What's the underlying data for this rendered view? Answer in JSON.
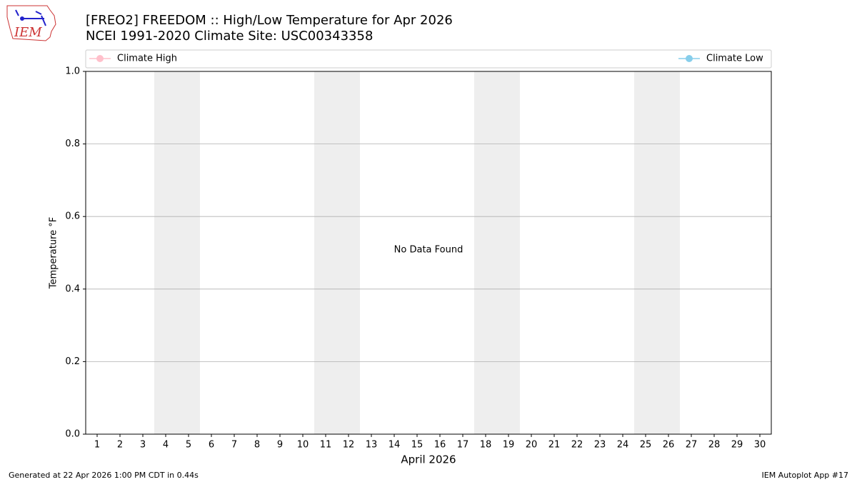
{
  "chart_data": {
    "type": "line",
    "title": "[FREO2] FREEDOM :: High/Low Temperature for Apr 2026",
    "subtitle": "NCEI 1991-2020 Climate Site: USC00343358",
    "logo_text": "IEM",
    "x_label": "April 2026",
    "y_label": "Temperature °F",
    "annotation": "No Data Found",
    "footer_left": "Generated at 22 Apr 2026 1:00 PM CDT in 0.44s",
    "footer_right": "IEM Autoplot App #17",
    "x": [
      1,
      2,
      3,
      4,
      5,
      6,
      7,
      8,
      9,
      10,
      11,
      12,
      13,
      14,
      15,
      16,
      17,
      18,
      19,
      20,
      21,
      22,
      23,
      24,
      25,
      26,
      27,
      28,
      29,
      30
    ],
    "xlim": [
      0.5,
      30.5
    ],
    "xticks": [
      1,
      2,
      3,
      4,
      5,
      6,
      7,
      8,
      9,
      10,
      11,
      12,
      13,
      14,
      15,
      16,
      17,
      18,
      19,
      20,
      21,
      22,
      23,
      24,
      25,
      26,
      27,
      28,
      29,
      30
    ],
    "ylim": [
      0,
      1
    ],
    "yticks": [
      {
        "value": 0,
        "label": "0.0"
      },
      {
        "value": 0.2,
        "label": "0.2"
      },
      {
        "value": 0.4,
        "label": "0.4"
      },
      {
        "value": 0.6,
        "label": "0.6"
      },
      {
        "value": 0.8,
        "label": "0.8"
      },
      {
        "value": 1,
        "label": "1.0"
      }
    ],
    "grid": true,
    "shaded_days": [
      [
        4,
        5
      ],
      [
        11,
        12
      ],
      [
        18,
        19
      ],
      [
        25,
        26
      ]
    ],
    "shade_color": "#eeeeee",
    "series": [
      {
        "name": "Climate High",
        "color": "#ffc0cb",
        "values": [
          null,
          null,
          null,
          null,
          null,
          null,
          null,
          null,
          null,
          null,
          null,
          null,
          null,
          null,
          null,
          null,
          null,
          null,
          null,
          null,
          null,
          null,
          null,
          null,
          null,
          null,
          null,
          null,
          null,
          null
        ]
      },
      {
        "name": "Climate Low",
        "color": "#87ceeb",
        "values": [
          null,
          null,
          null,
          null,
          null,
          null,
          null,
          null,
          null,
          null,
          null,
          null,
          null,
          null,
          null,
          null,
          null,
          null,
          null,
          null,
          null,
          null,
          null,
          null,
          null,
          null,
          null,
          null,
          null,
          null
        ]
      }
    ]
  }
}
